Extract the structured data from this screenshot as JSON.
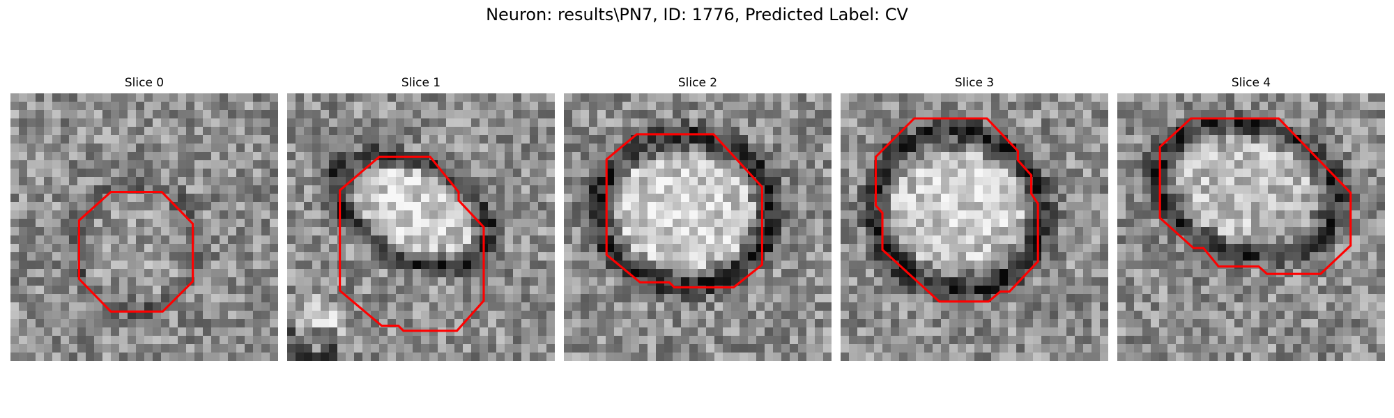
{
  "figure": {
    "title": "Neuron: results\\PN7, ID: 1776, Predicted Label: CV"
  },
  "panels": [
    {
      "title": "Slice 0"
    },
    {
      "title": "Slice 1"
    },
    {
      "title": "Slice 2"
    },
    {
      "title": "Slice 3"
    },
    {
      "title": "Slice 4"
    }
  ],
  "colors": {
    "contour": "#ff0000",
    "background": "#ffffff"
  }
}
